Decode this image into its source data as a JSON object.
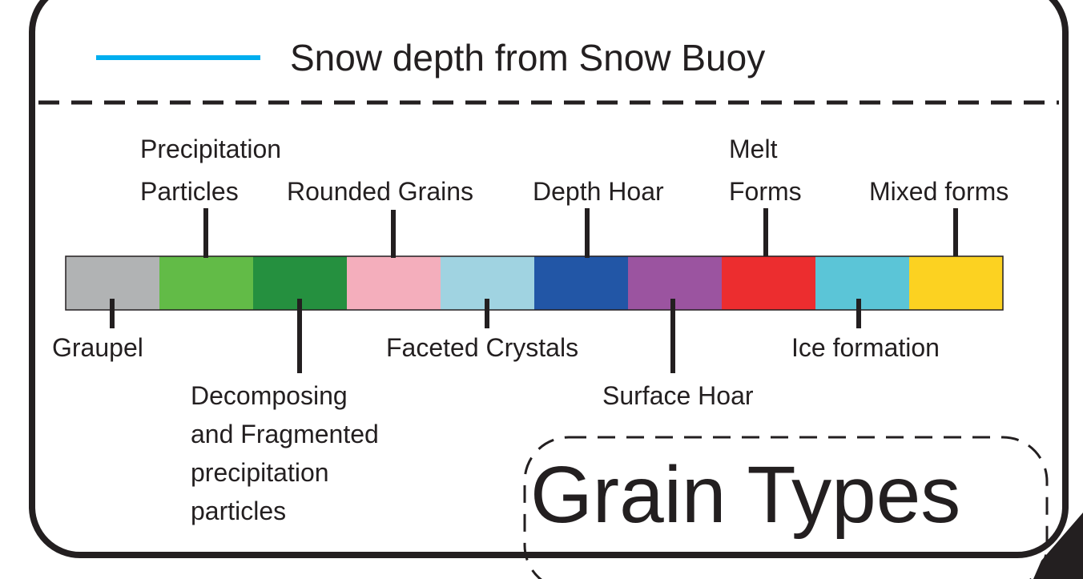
{
  "legend": {
    "label": "Snow depth from Snow Buoy",
    "color": "#00aeef"
  },
  "grain_types": [
    {
      "label_lines": [
        "Graupel"
      ],
      "color": "#b1b3b4"
    },
    {
      "label_lines": [
        "Precipitation",
        "Particles"
      ],
      "color": "#62bb47"
    },
    {
      "label_lines": [
        "Decomposing",
        " and Fragmented",
        "precipitation",
        "particles"
      ],
      "color": "#25903f"
    },
    {
      "label_lines": [
        "Rounded Grains"
      ],
      "color": "#f4aebc"
    },
    {
      "label_lines": [
        "Faceted Crystals"
      ],
      "color": "#a0d3e1"
    },
    {
      "label_lines": [
        "Depth Hoar"
      ],
      "color": "#2256a6"
    },
    {
      "label_lines": [
        "Surface Hoar"
      ],
      "color": "#9b54a0"
    },
    {
      "label_lines": [
        "Melt",
        "Forms"
      ],
      "color": "#ec2d2f"
    },
    {
      "label_lines": [
        "Ice formation"
      ],
      "color": "#5bc5d7"
    },
    {
      "label_lines": [
        "Mixed forms"
      ],
      "color": "#fcd221"
    }
  ],
  "title": "Grain Types"
}
